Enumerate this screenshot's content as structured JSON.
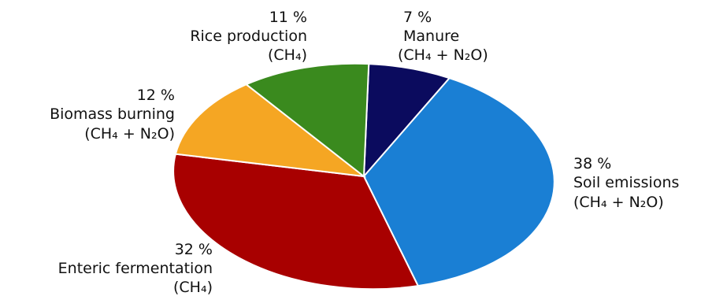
{
  "chart_data": {
    "type": "pie",
    "title": "",
    "slices": [
      {
        "pct_label": "7 %",
        "name": "Manure",
        "gas": "(CH₄ + N₂O)",
        "value": 7,
        "color": "#0b0b5e"
      },
      {
        "pct_label": "38 %",
        "name": "Soil emissions",
        "gas": "(CH₄ + N₂O)",
        "value": 38,
        "color": "#1a7fd4"
      },
      {
        "pct_label": "32 %",
        "name": "Enteric fermentation",
        "gas": "(CH₄)",
        "value": 32,
        "color": "#a80000"
      },
      {
        "pct_label": "12 %",
        "name": "Biomass burning",
        "gas": "(CH₄ + N₂O)",
        "value": 12,
        "color": "#f5a623"
      },
      {
        "pct_label": "11 %",
        "name": "Rice production",
        "gas": "(CH₄)",
        "value": 11,
        "color": "#3a8a1e"
      }
    ]
  }
}
